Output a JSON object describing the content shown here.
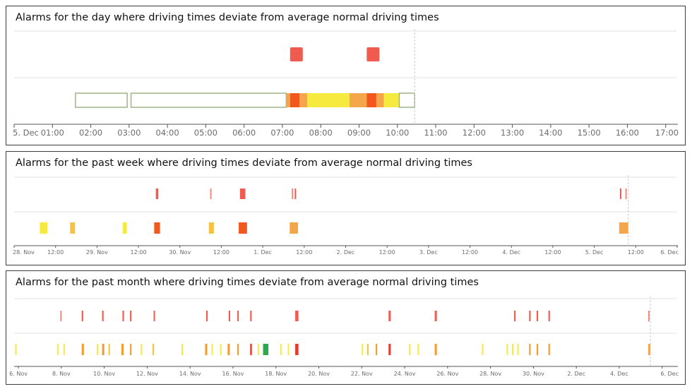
{
  "panels": [
    {
      "title": "Alarms for the day where driving times deviate from average normal driving times",
      "chart_data": {
        "type": "timeline",
        "x_tick_labels": [
          "5. Dec",
          "01:00",
          "02:00",
          "03:00",
          "04:00",
          "05:00",
          "06:00",
          "07:00",
          "08:00",
          "09:00",
          "10:00",
          "11:00",
          "12:00",
          "13:00",
          "14:00",
          "15:00",
          "16:00",
          "17:00"
        ],
        "xlim": [
          0,
          17.3
        ],
        "current_time": 10.45,
        "alarm_row": [
          {
            "start": 7.2,
            "end": 7.5,
            "color": "#ef5b4f"
          },
          {
            "start": 9.2,
            "end": 9.45,
            "color": "#ef5b4f"
          }
        ],
        "driving_row": [
          {
            "start": 1.6,
            "end": 2.95,
            "color": "#ffffff"
          },
          {
            "start": 3.05,
            "end": 7.1,
            "color": "#ffffff"
          },
          {
            "start": 7.1,
            "end": 7.2,
            "color": "#f5a64b"
          },
          {
            "start": 7.2,
            "end": 7.45,
            "color": "#f2581e"
          },
          {
            "start": 7.45,
            "end": 7.65,
            "color": "#f5a64b"
          },
          {
            "start": 7.65,
            "end": 8.75,
            "color": "#f7ea3f"
          },
          {
            "start": 8.75,
            "end": 9.2,
            "color": "#f5a64b"
          },
          {
            "start": 9.2,
            "end": 9.45,
            "color": "#f2581e"
          },
          {
            "start": 9.45,
            "end": 9.65,
            "color": "#f5a64b"
          },
          {
            "start": 9.65,
            "end": 10.05,
            "color": "#f7ea3f"
          },
          {
            "start": 10.05,
            "end": 10.45,
            "color": "#ffffff"
          }
        ]
      }
    },
    {
      "title": "Alarms for the past week where driving times deviate from average normal driving times",
      "chart_data": {
        "type": "timeline",
        "x_tick_labels": [
          "28. Nov",
          "12:00",
          "29. Nov",
          "12:00",
          "30. Nov",
          "12:00",
          "1. Dec",
          "12:00",
          "2. Dec",
          "12:00",
          "3. Dec",
          "12:00",
          "4. Dec",
          "12:00",
          "5. Dec",
          "12:00",
          "6. Dec"
        ],
        "xlim": [
          0,
          16
        ],
        "current_time": 14.82,
        "alarm_row": [
          {
            "start": 3.42,
            "end": 3.48,
            "color": "#ef5b4f"
          },
          {
            "start": 4.73,
            "end": 4.75,
            "color": "#ef8a80"
          },
          {
            "start": 5.45,
            "end": 5.58,
            "color": "#ef5b4f"
          },
          {
            "start": 6.7,
            "end": 6.73,
            "color": "#ef8a80"
          },
          {
            "start": 6.77,
            "end": 6.8,
            "color": "#ef5b4f"
          },
          {
            "start": 14.62,
            "end": 14.65,
            "color": "#ef5b4f"
          },
          {
            "start": 14.75,
            "end": 14.78,
            "color": "#ef8a80"
          }
        ],
        "driving_row": [
          {
            "start": 0.62,
            "end": 0.8,
            "color": "#f7ea3f"
          },
          {
            "start": 1.35,
            "end": 1.47,
            "color": "#f6c23f"
          },
          {
            "start": 2.62,
            "end": 2.72,
            "color": "#f7ea3f"
          },
          {
            "start": 3.38,
            "end": 3.52,
            "color": "#f2581e"
          },
          {
            "start": 4.7,
            "end": 4.82,
            "color": "#f6c23f"
          },
          {
            "start": 5.42,
            "end": 5.62,
            "color": "#f2581e"
          },
          {
            "start": 6.65,
            "end": 6.85,
            "color": "#f5a64b"
          },
          {
            "start": 14.6,
            "end": 14.82,
            "color": "#f5a64b"
          }
        ]
      }
    },
    {
      "title": "Alarms for the past month where driving times deviate from average normal driving times",
      "chart_data": {
        "type": "timeline",
        "x_tick_labels": [
          "6. Nov",
          "8. Nov",
          "10. Nov",
          "12. Nov",
          "14. Nov",
          "16. Nov",
          "18. Nov",
          "20. Nov",
          "22. Nov",
          "24. Nov",
          "26. Nov",
          "28. Nov",
          "30. Nov",
          "2. Dec",
          "4. Dec",
          "6. Dec"
        ],
        "xlim": [
          0,
          30.9
        ],
        "current_time": 29.65,
        "alarm_row": [
          {
            "start": 2.15,
            "end": 2.2,
            "color": "#ef8a80"
          },
          {
            "start": 3.15,
            "end": 3.22,
            "color": "#ef5b4f"
          },
          {
            "start": 4.1,
            "end": 4.17,
            "color": "#ef5b4f"
          },
          {
            "start": 5.05,
            "end": 5.12,
            "color": "#ef5b4f"
          },
          {
            "start": 5.4,
            "end": 5.47,
            "color": "#ef5b4f"
          },
          {
            "start": 6.5,
            "end": 6.56,
            "color": "#ef5b4f"
          },
          {
            "start": 8.95,
            "end": 9.02,
            "color": "#ef5b4f"
          },
          {
            "start": 10.0,
            "end": 10.07,
            "color": "#ef5b4f"
          },
          {
            "start": 10.4,
            "end": 10.47,
            "color": "#ef5b4f"
          },
          {
            "start": 11.0,
            "end": 11.07,
            "color": "#ef5b4f"
          },
          {
            "start": 13.1,
            "end": 13.25,
            "color": "#ef5b4f"
          },
          {
            "start": 17.45,
            "end": 17.55,
            "color": "#ef5b4f"
          },
          {
            "start": 19.6,
            "end": 19.7,
            "color": "#ef5b4f"
          },
          {
            "start": 23.3,
            "end": 23.37,
            "color": "#ef5b4f"
          },
          {
            "start": 24.0,
            "end": 24.07,
            "color": "#ef5b4f"
          },
          {
            "start": 24.35,
            "end": 24.42,
            "color": "#ef5b4f"
          },
          {
            "start": 24.9,
            "end": 24.97,
            "color": "#ef5b4f"
          },
          {
            "start": 29.55,
            "end": 29.6,
            "color": "#ef8a80"
          }
        ],
        "driving_row": [
          {
            "start": 0.05,
            "end": 0.1,
            "color": "#f7ea3f"
          },
          {
            "start": 2.0,
            "end": 2.05,
            "color": "#f7ea3f"
          },
          {
            "start": 2.3,
            "end": 2.35,
            "color": "#f7ea3f"
          },
          {
            "start": 3.15,
            "end": 3.25,
            "color": "#f59a2b"
          },
          {
            "start": 3.85,
            "end": 3.9,
            "color": "#f7ea3f"
          },
          {
            "start": 4.1,
            "end": 4.2,
            "color": "#f59a2b"
          },
          {
            "start": 4.4,
            "end": 4.45,
            "color": "#f6c23f"
          },
          {
            "start": 5.0,
            "end": 5.1,
            "color": "#f59a2b"
          },
          {
            "start": 5.4,
            "end": 5.47,
            "color": "#f59a2b"
          },
          {
            "start": 5.9,
            "end": 5.95,
            "color": "#f7ea3f"
          },
          {
            "start": 6.45,
            "end": 6.52,
            "color": "#f6c23f"
          },
          {
            "start": 7.8,
            "end": 7.85,
            "color": "#f7ea3f"
          },
          {
            "start": 8.9,
            "end": 9.0,
            "color": "#f59a2b"
          },
          {
            "start": 9.2,
            "end": 9.25,
            "color": "#f7ea3f"
          },
          {
            "start": 9.6,
            "end": 9.65,
            "color": "#f7ea3f"
          },
          {
            "start": 9.95,
            "end": 10.05,
            "color": "#f59a2b"
          },
          {
            "start": 10.4,
            "end": 10.47,
            "color": "#f59a2b"
          },
          {
            "start": 11.0,
            "end": 11.08,
            "color": "#e9372a"
          },
          {
            "start": 11.35,
            "end": 11.4,
            "color": "#f7ea3f"
          },
          {
            "start": 11.6,
            "end": 11.85,
            "color": "#2fa84f"
          },
          {
            "start": 12.4,
            "end": 12.45,
            "color": "#f7ea3f"
          },
          {
            "start": 12.75,
            "end": 12.8,
            "color": "#f7ea3f"
          },
          {
            "start": 13.1,
            "end": 13.25,
            "color": "#e9372a"
          },
          {
            "start": 16.2,
            "end": 16.25,
            "color": "#f7ea3f"
          },
          {
            "start": 16.45,
            "end": 16.52,
            "color": "#f6c23f"
          },
          {
            "start": 16.85,
            "end": 16.92,
            "color": "#f59a2b"
          },
          {
            "start": 17.45,
            "end": 17.55,
            "color": "#e9372a"
          },
          {
            "start": 18.4,
            "end": 18.45,
            "color": "#f7ea3f"
          },
          {
            "start": 18.8,
            "end": 18.85,
            "color": "#f7ea3f"
          },
          {
            "start": 19.6,
            "end": 19.7,
            "color": "#f59a2b"
          },
          {
            "start": 21.8,
            "end": 21.85,
            "color": "#f7ea3f"
          },
          {
            "start": 22.95,
            "end": 23.0,
            "color": "#f7ea3f"
          },
          {
            "start": 23.2,
            "end": 23.25,
            "color": "#f7ea3f"
          },
          {
            "start": 23.45,
            "end": 23.5,
            "color": "#f7ea3f"
          },
          {
            "start": 24.0,
            "end": 24.07,
            "color": "#f59a2b"
          },
          {
            "start": 24.35,
            "end": 24.42,
            "color": "#f59a2b"
          },
          {
            "start": 24.9,
            "end": 24.97,
            "color": "#f59a2b"
          },
          {
            "start": 29.55,
            "end": 29.65,
            "color": "#f5a64b"
          }
        ]
      }
    }
  ]
}
